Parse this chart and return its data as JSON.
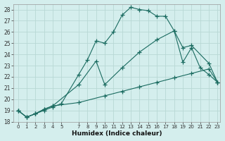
{
  "xlabel": "Humidex (Indice chaleur)",
  "background_color": "#d4eeed",
  "grid_color": "#b8d8d5",
  "line_color": "#1a6b60",
  "marker": "+",
  "ylim": [
    18,
    28.5
  ],
  "xlim": [
    -0.5,
    23.3
  ],
  "yticks": [
    18,
    19,
    20,
    21,
    22,
    23,
    24,
    25,
    26,
    27,
    28
  ],
  "xticks": [
    0,
    1,
    2,
    3,
    4,
    5,
    7,
    8,
    9,
    10,
    11,
    12,
    13,
    14,
    15,
    16,
    17,
    18,
    19,
    20,
    21,
    22,
    23
  ],
  "curve1_x": [
    0,
    1,
    2,
    3,
    4,
    5,
    7,
    8,
    9,
    10,
    11,
    12,
    13,
    14,
    15,
    16,
    17,
    18,
    19,
    20,
    21,
    22,
    23
  ],
  "curve1_y": [
    19.0,
    18.4,
    18.7,
    19.0,
    19.3,
    19.6,
    22.2,
    23.5,
    25.2,
    25.0,
    26.0,
    27.5,
    28.2,
    28.0,
    27.9,
    27.4,
    27.4,
    26.1,
    23.3,
    24.6,
    22.8,
    22.2,
    21.5
  ],
  "curve2_x": [
    0,
    1,
    2,
    3,
    4,
    7,
    9,
    10,
    12,
    14,
    16,
    18,
    19,
    20,
    22,
    23
  ],
  "curve2_y": [
    19.0,
    18.4,
    18.7,
    19.1,
    19.4,
    21.3,
    23.4,
    21.3,
    22.8,
    24.2,
    25.3,
    26.1,
    24.6,
    24.8,
    23.2,
    21.5
  ],
  "curve3_x": [
    0,
    1,
    2,
    3,
    4,
    7,
    10,
    12,
    14,
    16,
    18,
    20,
    22,
    23
  ],
  "curve3_y": [
    19.0,
    18.4,
    18.7,
    19.1,
    19.4,
    19.7,
    20.3,
    20.7,
    21.1,
    21.5,
    21.9,
    22.3,
    22.7,
    21.5
  ]
}
